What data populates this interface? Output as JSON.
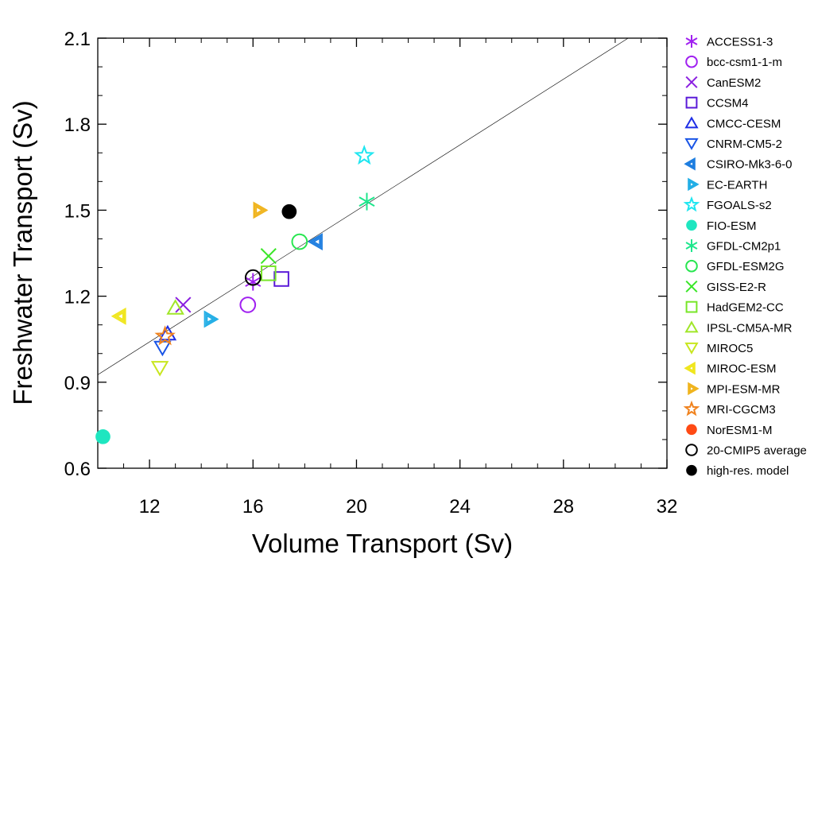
{
  "chart_data": {
    "type": "scatter",
    "xlabel": "Volume Transport (Sv)",
    "ylabel": "Freshwater Transport (Sv)",
    "xlim": [
      10,
      32
    ],
    "ylim": [
      0.6,
      2.1
    ],
    "xticks": [
      12,
      16,
      20,
      24,
      28,
      32
    ],
    "yticks": [
      0.6,
      0.9,
      1.2,
      1.5,
      1.8,
      2.1
    ],
    "xtick_labels": [
      "12",
      "16",
      "20",
      "24",
      "28",
      "32"
    ],
    "ytick_labels": [
      "0.6",
      "0.9",
      "1.2",
      "1.5",
      "1.8",
      "2.1"
    ],
    "grid": false,
    "legend_position": "right",
    "regression_line": {
      "x": [
        10,
        30.5
      ],
      "y": [
        0.926,
        2.1
      ]
    },
    "series": [
      {
        "name": "ACCESS1-3",
        "marker": "asterisk",
        "color": "#a020f0",
        "filled": false,
        "x": 16.0,
        "y": 1.25
      },
      {
        "name": "bcc-csm1-1-m",
        "marker": "circle",
        "color": "#a020f0",
        "filled": false,
        "x": 15.8,
        "y": 1.17
      },
      {
        "name": "CanESM2",
        "marker": "x",
        "color": "#8a1fe0",
        "filled": false,
        "x": 13.3,
        "y": 1.17
      },
      {
        "name": "CCSM4",
        "marker": "square",
        "color": "#5a1ad8",
        "filled": false,
        "x": 17.1,
        "y": 1.26
      },
      {
        "name": "CMCC-CESM",
        "marker": "triangle-up",
        "color": "#1e2ee6",
        "filled": false,
        "x": 12.7,
        "y": 1.07
      },
      {
        "name": "CNRM-CM5-2",
        "marker": "triangle-down",
        "color": "#1a55e6",
        "filled": false,
        "x": 12.5,
        "y": 1.02
      },
      {
        "name": "CSIRO-Mk3-6-0",
        "marker": "triangle-left",
        "color": "#1e7ee0",
        "filled": false,
        "x": 18.5,
        "y": 1.39
      },
      {
        "name": "EC-EARTH",
        "marker": "triangle-right",
        "color": "#22aee6",
        "filled": false,
        "x": 14.3,
        "y": 1.12
      },
      {
        "name": "FGOALS-s2",
        "marker": "star",
        "color": "#1ee6f0",
        "filled": false,
        "x": 20.3,
        "y": 1.69
      },
      {
        "name": "FIO-ESM",
        "marker": "circle",
        "color": "#1ee6c0",
        "filled": true,
        "x": 10.2,
        "y": 0.71
      },
      {
        "name": "GFDL-CM2p1",
        "marker": "asterisk",
        "color": "#1ee68c",
        "filled": false,
        "x": 20.4,
        "y": 1.53
      },
      {
        "name": "GFDL-ESM2G",
        "marker": "circle",
        "color": "#28e650",
        "filled": false,
        "x": 17.8,
        "y": 1.39
      },
      {
        "name": "GISS-E2-R",
        "marker": "x",
        "color": "#3ae628",
        "filled": false,
        "x": 16.6,
        "y": 1.34
      },
      {
        "name": "HadGEM2-CC",
        "marker": "square",
        "color": "#78e628",
        "filled": false,
        "x": 16.6,
        "y": 1.28
      },
      {
        "name": "IPSL-CM5A-MR",
        "marker": "triangle-up",
        "color": "#a0e628",
        "filled": false,
        "x": 13.0,
        "y": 1.16
      },
      {
        "name": "MIROC5",
        "marker": "triangle-down",
        "color": "#c8e61e",
        "filled": false,
        "x": 12.4,
        "y": 0.95
      },
      {
        "name": "MIROC-ESM",
        "marker": "triangle-left",
        "color": "#f0e61e",
        "filled": false,
        "x": 10.9,
        "y": 1.13
      },
      {
        "name": "MPI-ESM-MR",
        "marker": "triangle-right",
        "color": "#f0b41e",
        "filled": false,
        "x": 16.2,
        "y": 1.5
      },
      {
        "name": "MRI-CGCM3",
        "marker": "star",
        "color": "#f0821e",
        "filled": false,
        "x": 12.6,
        "y": 1.06
      },
      {
        "name": "NorESM1-M",
        "marker": "circle",
        "color": "#ff4a14",
        "filled": true,
        "x": null,
        "y": null
      },
      {
        "name": "20-CMIP5 average",
        "marker": "circle",
        "color": "#000000",
        "filled": false,
        "x": 16.0,
        "y": 1.265
      },
      {
        "name": "high-res. model",
        "marker": "circle",
        "color": "#000000",
        "filled": true,
        "x": 17.4,
        "y": 1.495
      }
    ]
  }
}
